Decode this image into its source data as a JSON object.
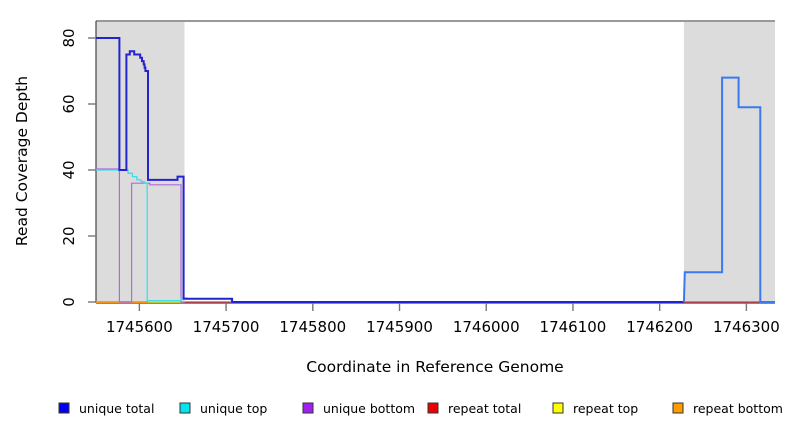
{
  "chart_data": {
    "type": "line",
    "subtype": "step-coverage-plot",
    "title": "",
    "xlabel": "Coordinate in Reference Genome",
    "ylabel": "Read Coverage Depth",
    "xlim": [
      1745550,
      1746333
    ],
    "ylim": [
      0,
      80
    ],
    "grid": false,
    "legend_position": "bottom",
    "xticks": [
      {
        "value": 1745600,
        "label": "1745600"
      },
      {
        "value": 1745700,
        "label": "1745700"
      },
      {
        "value": 1745800,
        "label": "1745800"
      },
      {
        "value": 1745900,
        "label": "1745900"
      },
      {
        "value": 1746000,
        "label": "1746000"
      },
      {
        "value": 1746100,
        "label": "1746100"
      },
      {
        "value": 1746200,
        "label": "1746200"
      },
      {
        "value": 1746300,
        "label": "1746300"
      }
    ],
    "yticks": [
      {
        "value": 0,
        "label": "0"
      },
      {
        "value": 20,
        "label": "20"
      },
      {
        "value": 40,
        "label": "40"
      },
      {
        "value": 60,
        "label": "60"
      },
      {
        "value": 80,
        "label": "80"
      }
    ],
    "shaded_regions": [
      {
        "name": "repeat-region-left",
        "x0": 1745550,
        "x1": 1745652,
        "color": "#dcdcdc"
      },
      {
        "name": "repeat-region-right",
        "x0": 1746228,
        "x1": 1746333,
        "color": "#dcdcdc"
      }
    ],
    "style": {
      "plot_background": "#ffffff",
      "shading": "#dcdcdc",
      "top_border": "#999999",
      "axis_line": "#444444",
      "tick_color": "#777777",
      "text_color": "#000000"
    },
    "series": [
      {
        "name": "repeat top",
        "width": 1.4,
        "segments": [
          {
            "color": "#e8e92f",
            "points": [
              [
                1745550,
                0
              ],
              [
                1745652,
                0
              ]
            ]
          }
        ]
      },
      {
        "name": "repeat bottom",
        "width": 1.8,
        "segments": [
          {
            "color": "#ff9415",
            "points": [
              [
                1745550,
                0
              ],
              [
                1745610,
                0
              ]
            ]
          }
        ]
      },
      {
        "name": "repeat total",
        "width": 1.3,
        "segments": [
          {
            "color": "#e04055",
            "points": [
              [
                1745652,
                0
              ],
              [
                1746317,
                0
              ]
            ]
          }
        ]
      },
      {
        "name": "unique bottom",
        "width": 1.2,
        "segments": [
          {
            "color": "#b069e0",
            "points": [
              [
                1745550,
                40.3
              ],
              [
                1745577,
                40.3
              ],
              [
                1745577,
                0
              ],
              [
                1745591,
                0
              ],
              [
                1745591,
                36
              ],
              [
                1745612,
                36
              ],
              [
                1745612,
                35.5
              ],
              [
                1745648,
                35.5
              ],
              [
                1745648,
                0
              ],
              [
                1745653,
                0
              ]
            ]
          }
        ]
      },
      {
        "name": "unique top",
        "width": 1.3,
        "segments": [
          {
            "color": "#3edde8",
            "points": [
              [
                1745550,
                40
              ],
              [
                1745587,
                40
              ],
              [
                1745587,
                39
              ],
              [
                1745592,
                39
              ],
              [
                1745592,
                38
              ],
              [
                1745597,
                38
              ],
              [
                1745597,
                37
              ],
              [
                1745602,
                37
              ],
              [
                1745602,
                36.5
              ],
              [
                1745606,
                36.5
              ],
              [
                1745606,
                36
              ],
              [
                1745609,
                36
              ],
              [
                1745609,
                0.4
              ],
              [
                1745648,
                0.4
              ],
              [
                1745648,
                1.2
              ],
              [
                1745655,
                1.2
              ],
              [
                1745655,
                1
              ],
              [
                1745706,
                1
              ],
              [
                1745706,
                0
              ],
              [
                1745712,
                0
              ]
            ]
          }
        ]
      },
      {
        "name": "unique total",
        "width": 2,
        "segments": [
          {
            "color": "#2424cf",
            "points": [
              [
                1745550,
                80
              ],
              [
                1745577,
                80
              ],
              [
                1745577,
                40
              ],
              [
                1745585,
                40
              ],
              [
                1745585,
                75
              ],
              [
                1745589,
                75
              ],
              [
                1745589,
                76
              ],
              [
                1745594,
                76
              ],
              [
                1745594,
                75
              ],
              [
                1745601,
                75
              ],
              [
                1745601,
                74
              ],
              [
                1745603,
                74
              ],
              [
                1745603,
                73
              ],
              [
                1745605,
                73
              ],
              [
                1745605,
                72
              ],
              [
                1745606,
                72
              ],
              [
                1745606,
                71
              ],
              [
                1745607,
                71
              ],
              [
                1745607,
                70
              ],
              [
                1745610,
                70
              ],
              [
                1745610,
                37
              ],
              [
                1745644,
                37
              ],
              [
                1745644,
                38
              ],
              [
                1745651,
                38
              ],
              [
                1745651,
                1
              ],
              [
                1745707,
                1
              ],
              [
                1745707,
                0
              ],
              [
                1746228,
                0
              ]
            ]
          },
          {
            "color": "#3b79ef",
            "points": [
              [
                1746228,
                0
              ],
              [
                1746229,
                9
              ],
              [
                1746272,
                9
              ],
              [
                1746272,
                68
              ],
              [
                1746291,
                68
              ],
              [
                1746291,
                59
              ],
              [
                1746316,
                59
              ],
              [
                1746316,
                0
              ],
              [
                1746333,
                0
              ]
            ]
          }
        ]
      }
    ],
    "legend": [
      {
        "label": "unique total",
        "color": "#0000ee"
      },
      {
        "label": "unique top",
        "color": "#00e5ee"
      },
      {
        "label": "unique bottom",
        "color": "#a020f0"
      },
      {
        "label": "repeat total",
        "color": "#ee0000"
      },
      {
        "label": "repeat top",
        "color": "#ffff00"
      },
      {
        "label": "repeat bottom",
        "color": "#ff9d00"
      }
    ]
  }
}
